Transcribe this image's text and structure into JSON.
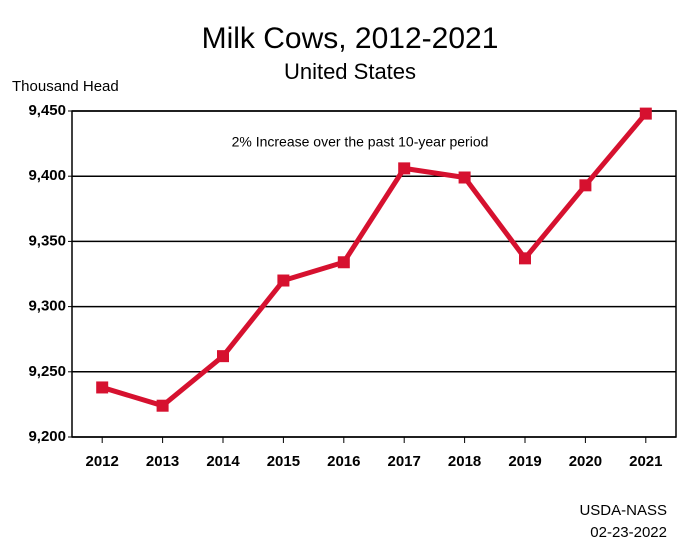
{
  "chart_data": {
    "type": "line",
    "title": "Milk Cows, 2012-2021",
    "subtitle": "United States",
    "y_label": "Thousand Head",
    "annotation": "2% Increase over the past 10-year period",
    "source": "USDA-NASS",
    "date": "02-23-2022",
    "categories": [
      "2012",
      "2013",
      "2014",
      "2015",
      "2016",
      "2017",
      "2018",
      "2019",
      "2020",
      "2021"
    ],
    "series": [
      {
        "color": "#d6112f",
        "values": [
          9238,
          9224,
          9262,
          9320,
          9334,
          9406,
          9399,
          9337,
          9393,
          9448
        ]
      }
    ],
    "ylim": [
      9200,
      9450
    ],
    "yticks": [
      {
        "value": 9200,
        "label": "9,200"
      },
      {
        "value": 9250,
        "label": "9,250"
      },
      {
        "value": 9300,
        "label": "9,300"
      },
      {
        "value": 9350,
        "label": "9,350"
      },
      {
        "value": 9400,
        "label": "9,400"
      },
      {
        "value": 9450,
        "label": "9,450"
      }
    ],
    "grid": true
  }
}
